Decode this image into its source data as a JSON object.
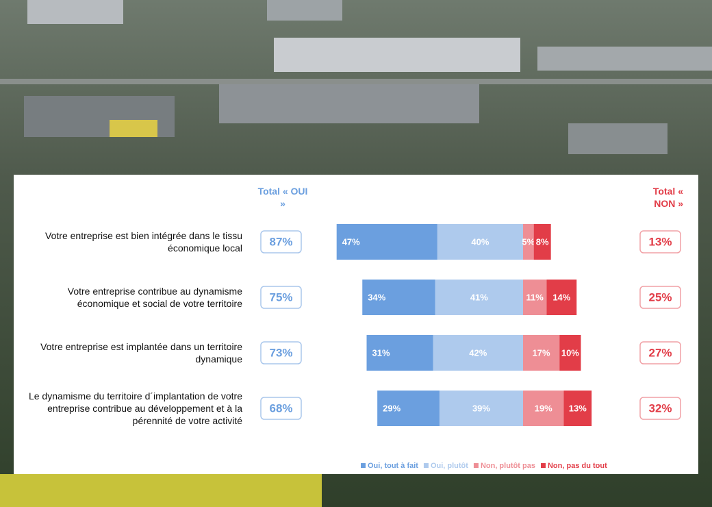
{
  "chart_data": {
    "type": "diverging_bar",
    "categories": [
      "Votre entreprise est bien intégrée dans le tissu économique local",
      "Votre entreprise contribue au dynamisme économique et social de votre territoire",
      "Votre entreprise est implantée dans un territoire dynamique",
      "Le dynamisme du territoire d´implantation de votre entreprise contribue au développement et à la pérennité de votre activité"
    ],
    "series": [
      {
        "name": "Oui, tout à fait",
        "color": "#6b9fdf",
        "values": [
          47,
          34,
          31,
          29
        ],
        "value_labels": [
          "47%",
          "34%",
          "31%",
          "29%"
        ]
      },
      {
        "name": "Oui, plutôt",
        "color": "#aecaed",
        "values": [
          40,
          41,
          42,
          39
        ],
        "value_labels": [
          "40%",
          "41%",
          "42%",
          "39%"
        ]
      },
      {
        "name": "Non, plutôt pas",
        "color": "#ee8e95",
        "values": [
          5,
          11,
          17,
          19
        ],
        "value_labels": [
          "5%",
          "11%",
          "17%",
          "19%"
        ]
      },
      {
        "name": "Non, pas du tout",
        "color": "#e23d48",
        "values": [
          8,
          14,
          10,
          13
        ],
        "value_labels": [
          "8%",
          "14%",
          "10%",
          "13%"
        ]
      }
    ],
    "total_oui": {
      "label": "Total « OUI »",
      "values": [
        87,
        75,
        73,
        68
      ],
      "value_labels": [
        "87%",
        "75%",
        "73%",
        "68%"
      ]
    },
    "total_non": {
      "label": "Total « NON »",
      "values": [
        13,
        25,
        27,
        32
      ],
      "value_labels": [
        "13%",
        "25%",
        "27%",
        "32%"
      ]
    }
  }
}
